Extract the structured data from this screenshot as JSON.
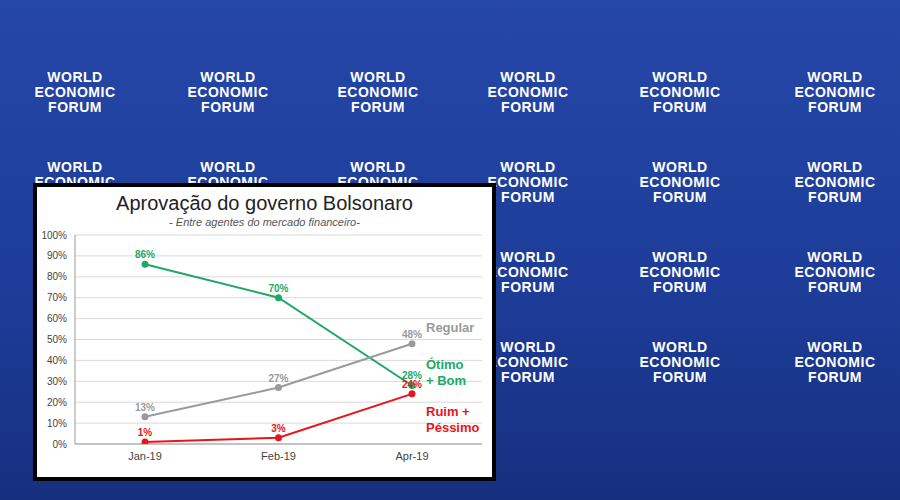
{
  "chart_data": {
    "type": "line",
    "title": "Aprovação do governo Bolsonaro",
    "subtitle": "- Entre agentes do mercado financeiro-",
    "categories": [
      "Jan-19",
      "Feb-19",
      "Apr-19"
    ],
    "series": [
      {
        "name": "Ótimo + Bom",
        "color": "#1ea866",
        "values": [
          86,
          70,
          28
        ],
        "value_labels": [
          "86%",
          "70%",
          "28%"
        ]
      },
      {
        "name": "Regular",
        "color": "#9a9a9a",
        "values": [
          13,
          27,
          48
        ],
        "value_labels": [
          "13%",
          "27%",
          "48%"
        ]
      },
      {
        "name": "Ruim + Péssimo",
        "color": "#e8141c",
        "values": [
          1,
          3,
          24
        ],
        "value_labels": [
          "1%",
          "3%",
          "24%"
        ]
      }
    ],
    "ylim": [
      0,
      100
    ],
    "yticks": [
      {
        "value": 0,
        "label": "0%"
      },
      {
        "value": 10,
        "label": "10%"
      },
      {
        "value": 20,
        "label": "20%"
      },
      {
        "value": 30,
        "label": "30%"
      },
      {
        "value": 40,
        "label": "40%"
      },
      {
        "value": 50,
        "label": "50%"
      },
      {
        "value": 60,
        "label": "60%"
      },
      {
        "value": 70,
        "label": "70%"
      },
      {
        "value": 80,
        "label": "80%"
      },
      {
        "value": 90,
        "label": "90%"
      },
      {
        "value": 100,
        "label": "100%"
      }
    ],
    "grid": true,
    "marker": "circle"
  },
  "background": {
    "logo": [
      "WORLD",
      "ECONOMIC",
      "FORUM"
    ]
  }
}
